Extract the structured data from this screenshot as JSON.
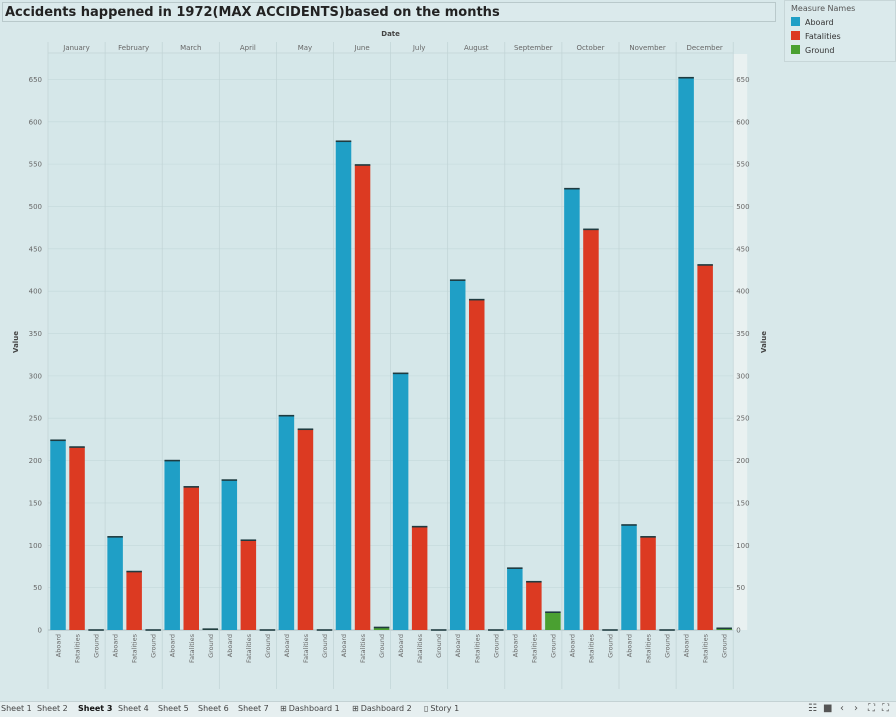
{
  "title": "Accidents happened in 1972(MAX ACCIDENTS)based on the months",
  "legend": {
    "title": "Measure Names",
    "items": [
      {
        "label": "Aboard",
        "color": "#1f9fc6"
      },
      {
        "label": "Fatalities",
        "color": "#dc3a22"
      },
      {
        "label": "Ground",
        "color": "#4aa031"
      }
    ]
  },
  "tabs": [
    {
      "label": "Sheet 1",
      "icon": ""
    },
    {
      "label": "Sheet 2",
      "icon": ""
    },
    {
      "label": "Sheet 3",
      "icon": "",
      "active": true
    },
    {
      "label": "Sheet 4",
      "icon": ""
    },
    {
      "label": "Sheet 5",
      "icon": ""
    },
    {
      "label": "Sheet 6",
      "icon": ""
    },
    {
      "label": "Sheet 7",
      "icon": ""
    },
    {
      "label": "Dashboard 1",
      "icon": "dashboard-icon"
    },
    {
      "label": "Dashboard 2",
      "icon": "dashboard-icon"
    },
    {
      "label": "Story 1",
      "icon": "story-icon"
    }
  ],
  "chart_data": {
    "type": "bar",
    "title": "Accidents happened in 1972(MAX ACCIDENTS)based on the months",
    "column_header": "Date",
    "ylabel": "Value",
    "ylim": [
      0,
      680
    ],
    "yticks": [
      0,
      50,
      100,
      150,
      200,
      250,
      300,
      350,
      400,
      450,
      500,
      550,
      600,
      650
    ],
    "categories": [
      "January",
      "February",
      "March",
      "April",
      "May",
      "June",
      "July",
      "August",
      "September",
      "October",
      "November",
      "December"
    ],
    "measures": [
      "Aboard",
      "Fatalities",
      "Ground"
    ],
    "series": [
      {
        "name": "Aboard",
        "color": "#1f9fc6",
        "values": [
          224,
          110,
          200,
          177,
          253,
          577,
          303,
          413,
          73,
          521,
          124,
          652
        ]
      },
      {
        "name": "Fatalities",
        "color": "#dc3a22",
        "values": [
          216,
          69,
          169,
          106,
          237,
          549,
          122,
          390,
          57,
          473,
          110,
          431
        ]
      },
      {
        "name": "Ground",
        "color": "#4aa031",
        "values": [
          0,
          0,
          1,
          0,
          0,
          3,
          0,
          0,
          21,
          0,
          0,
          2
        ]
      }
    ],
    "grid": true,
    "legend_position": "top-right"
  }
}
